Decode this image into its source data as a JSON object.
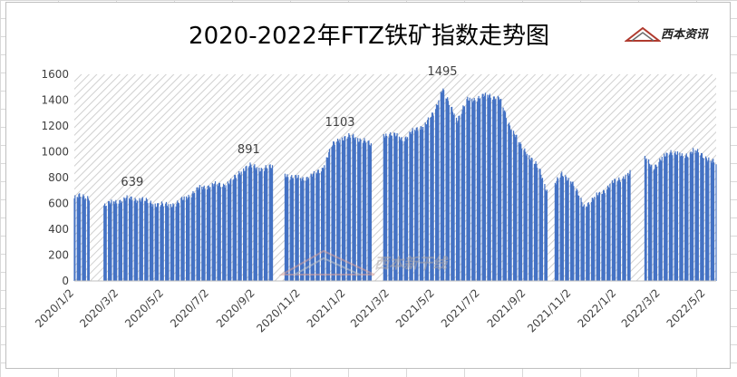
{
  "chart_data": {
    "type": "bar",
    "title": "2020-2022年FTZ铁矿指数走势图",
    "xlabel": "",
    "ylabel": "",
    "ylim": [
      0,
      1600
    ],
    "yticks": [
      0,
      200,
      400,
      600,
      800,
      1000,
      1200,
      1400,
      1600
    ],
    "xtick_labels": [
      "2020/1/2",
      "2020/3/2",
      "2020/5/2",
      "2020/7/2",
      "2020/9/2",
      "2020/11/2",
      "2021/1/2",
      "2021/3/2",
      "2021/5/2",
      "2021/7/2",
      "2021/9/2",
      "2021/11/2",
      "2022/1/2",
      "2022/3/2",
      "2022/5/2"
    ],
    "date_range": [
      "2020/1/2",
      "2022/5/16"
    ],
    "bar_color": "#4472c4",
    "grid": false,
    "legend": "none",
    "annotations": [
      {
        "x": "2020/3/20",
        "label": "639"
      },
      {
        "x": "2020/8/24",
        "label": "891"
      },
      {
        "x": "2020/12/25",
        "label": "1103"
      },
      {
        "x": "2021/5/12",
        "label": "1495"
      }
    ],
    "series_anchors": [
      [
        "2020/1/2",
        640
      ],
      [
        "2020/1/10",
        655
      ],
      [
        "2020/1/22",
        650
      ],
      [
        "2020/2/3",
        0
      ],
      [
        "2020/2/7",
        0
      ],
      [
        "2020/2/10",
        585
      ],
      [
        "2020/2/20",
        600
      ],
      [
        "2020/3/2",
        625
      ],
      [
        "2020/3/20",
        639
      ],
      [
        "2020/4/1",
        630
      ],
      [
        "2020/4/20",
        595
      ],
      [
        "2020/5/1",
        585
      ],
      [
        "2020/5/20",
        600
      ],
      [
        "2020/6/1",
        650
      ],
      [
        "2020/6/20",
        720
      ],
      [
        "2020/7/2",
        740
      ],
      [
        "2020/7/20",
        745
      ],
      [
        "2020/8/1",
        770
      ],
      [
        "2020/8/15",
        860
      ],
      [
        "2020/8/24",
        891
      ],
      [
        "2020/9/10",
        870
      ],
      [
        "2020/9/25",
        880
      ],
      [
        "2020/9/30",
        0
      ],
      [
        "2020/10/7",
        0
      ],
      [
        "2020/10/10",
        830
      ],
      [
        "2020/10/25",
        800
      ],
      [
        "2020/11/2",
        790
      ],
      [
        "2020/11/20",
        820
      ],
      [
        "2020/12/1",
        870
      ],
      [
        "2020/12/15",
        1050
      ],
      [
        "2020/12/25",
        1103
      ],
      [
        "2021/1/10",
        1120
      ],
      [
        "2021/1/25",
        1090
      ],
      [
        "2021/2/5",
        1050
      ],
      [
        "2021/2/10",
        0
      ],
      [
        "2021/2/17",
        0
      ],
      [
        "2021/2/20",
        1130
      ],
      [
        "2021/3/2",
        1140
      ],
      [
        "2021/3/20",
        1100
      ],
      [
        "2021/4/1",
        1150
      ],
      [
        "2021/4/20",
        1220
      ],
      [
        "2021/5/1",
        1300
      ],
      [
        "2021/5/12",
        1495
      ],
      [
        "2021/5/20",
        1380
      ],
      [
        "2021/6/1",
        1250
      ],
      [
        "2021/6/15",
        1400
      ],
      [
        "2021/7/1",
        1420
      ],
      [
        "2021/7/15",
        1440
      ],
      [
        "2021/7/28",
        1410
      ],
      [
        "2021/8/10",
        1220
      ],
      [
        "2021/8/25",
        1050
      ],
      [
        "2021/9/2",
        1000
      ],
      [
        "2021/9/20",
        860
      ],
      [
        "2021/9/30",
        700
      ],
      [
        "2021/10/1",
        0
      ],
      [
        "2021/10/7",
        0
      ],
      [
        "2021/10/8",
        740
      ],
      [
        "2021/10/20",
        820
      ],
      [
        "2021/11/2",
        780
      ],
      [
        "2021/11/18",
        580
      ],
      [
        "2021/12/1",
        630
      ],
      [
        "2021/12/15",
        700
      ],
      [
        "2022/1/2",
        780
      ],
      [
        "2022/1/20",
        830
      ],
      [
        "2022/1/30",
        0
      ],
      [
        "2022/2/6",
        0
      ],
      [
        "2022/2/8",
        960
      ],
      [
        "2022/2/20",
        880
      ],
      [
        "2022/3/2",
        930
      ],
      [
        "2022/3/15",
        1010
      ],
      [
        "2022/4/1",
        960
      ],
      [
        "2022/4/15",
        1010
      ],
      [
        "2022/5/2",
        960
      ],
      [
        "2022/5/16",
        905
      ]
    ]
  }
}
